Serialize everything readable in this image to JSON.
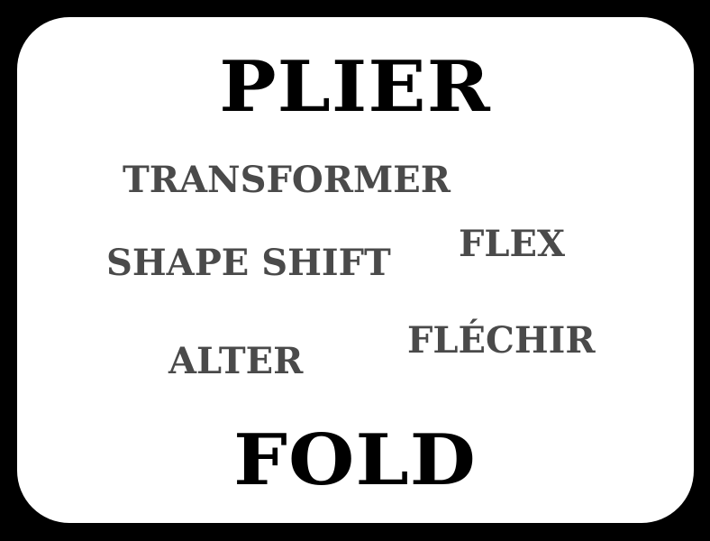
{
  "card": {
    "background": "#ffffff",
    "border_color": "#000000"
  },
  "title_word": "PLIER",
  "related_words": {
    "transformer": "TRANSFORMER",
    "flex": "FLEX",
    "shape_shift": "SHAPE SHIFT",
    "flechir": "FLÉCHIR",
    "alter": "ALTER"
  },
  "bottom_word": "FOLD",
  "colors": {
    "primary_text": "#000000",
    "secondary_text": "#4a4a4a"
  }
}
